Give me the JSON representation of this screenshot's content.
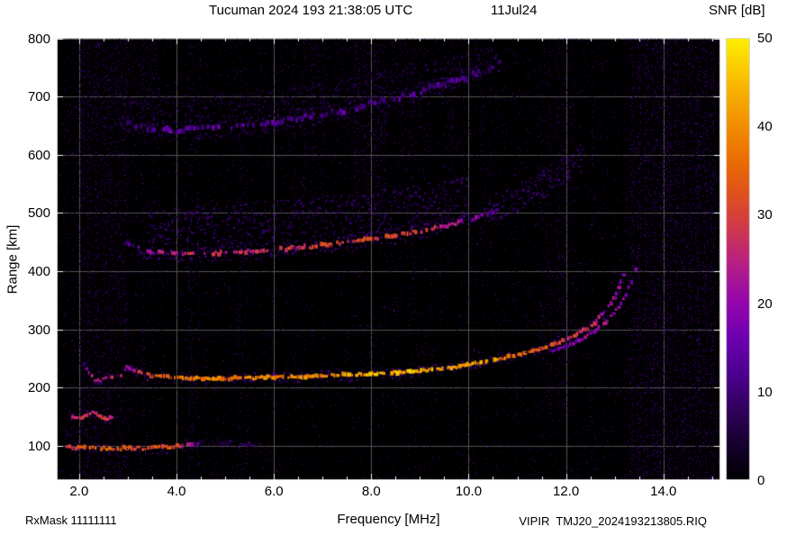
{
  "header": {
    "title": "Tucuman 2024 193 21:38:05 UTC",
    "date": "11Jul24",
    "colorbar_title": "SNR [dB]"
  },
  "axes": {
    "xlabel": "Frequency [MHz]",
    "ylabel": "Range [km]"
  },
  "footer": {
    "rxmask": "RxMask 11111111",
    "filename": "VIPIR  TMJ20_2024193213805.RIQ"
  },
  "chart_data": {
    "type": "heatmap",
    "title": "Tucuman 2024 193 21:38:05 UTC",
    "date_label": "11Jul24",
    "xlabel": "Frequency [MHz]",
    "ylabel": "Range [km]",
    "xlim": [
      1.54,
      15.17
    ],
    "ylim": [
      41,
      801
    ],
    "xticks": [
      2,
      4,
      6,
      8,
      10,
      12,
      14
    ],
    "xtick_labels": [
      "2.0",
      "4.0",
      "6.0",
      "8.0",
      "10.0",
      "12.0",
      "14.0"
    ],
    "x_minor_step": 0.5,
    "yticks": [
      100,
      200,
      300,
      400,
      500,
      600,
      700,
      800
    ],
    "ytick_labels": [
      "100",
      "200",
      "300",
      "400",
      "500",
      "600",
      "700",
      "800"
    ],
    "grid": true,
    "grid_color": "#555555",
    "background": "#000000",
    "border_color": "#d9d9d9",
    "colorbar": {
      "label": "SNR [dB]",
      "min": 0,
      "max": 50,
      "ticks": [
        0,
        10,
        20,
        30,
        40,
        50
      ],
      "tick_labels": [
        "0",
        "10",
        "20",
        "30",
        "40",
        "50"
      ]
    },
    "colormap": [
      [
        0,
        "#000000"
      ],
      [
        0.08,
        "#16002e"
      ],
      [
        0.16,
        "#31005c"
      ],
      [
        0.24,
        "#4c0090"
      ],
      [
        0.32,
        "#6d00b0"
      ],
      [
        0.4,
        "#9406ae"
      ],
      [
        0.48,
        "#b31c8c"
      ],
      [
        0.54,
        "#c62f62"
      ],
      [
        0.6,
        "#d6423a"
      ],
      [
        0.66,
        "#e15619"
      ],
      [
        0.72,
        "#ea6c04"
      ],
      [
        0.8,
        "#f28d00"
      ],
      [
        0.88,
        "#f8b100"
      ],
      [
        0.94,
        "#fcd000"
      ],
      [
        1,
        "#ffef00"
      ]
    ],
    "noise": {
      "base_density": 0.028,
      "base_snr": [
        2,
        9
      ],
      "bright_density": 0.004,
      "bright_snr": [
        8,
        18
      ]
    },
    "rfi_stripes": [
      [
        2.05,
        0.04,
        0.1,
        3,
        11,
        41,
        800
      ],
      [
        2.2,
        0.04,
        0.09,
        3,
        11,
        41,
        800
      ],
      [
        2.35,
        0.04,
        0.1,
        3,
        11,
        41,
        800
      ],
      [
        2.5,
        0.04,
        0.08,
        3,
        11,
        41,
        800
      ],
      [
        2.62,
        0.04,
        0.09,
        3,
        11,
        41,
        800
      ],
      [
        2.78,
        0.04,
        0.09,
        3,
        11,
        41,
        800
      ],
      [
        2.92,
        0.04,
        0.08,
        3,
        11,
        41,
        800
      ],
      [
        2.5,
        0.85,
        0.018,
        2,
        9,
        41,
        800
      ],
      [
        3.3,
        0.03,
        0.04,
        3,
        10,
        41,
        800
      ],
      [
        3.5,
        0.03,
        0.04,
        3,
        10,
        41,
        800
      ],
      [
        4.28,
        0.04,
        0.07,
        3,
        11,
        41,
        800
      ],
      [
        4.42,
        0.03,
        0.05,
        3,
        10,
        41,
        800
      ],
      [
        5.28,
        0.04,
        0.06,
        3,
        11,
        41,
        800
      ],
      [
        5.42,
        0.03,
        0.04,
        3,
        10,
        41,
        800
      ],
      [
        5.9,
        0.03,
        0.035,
        3,
        9,
        41,
        800
      ],
      [
        6.4,
        0.04,
        0.05,
        3,
        10,
        470,
        800
      ],
      [
        6.6,
        0.04,
        0.06,
        3,
        10,
        470,
        800
      ],
      [
        6.8,
        0.04,
        0.05,
        3,
        10,
        470,
        800
      ],
      [
        7.0,
        0.03,
        0.04,
        3,
        10,
        470,
        800
      ],
      [
        7.7,
        0.05,
        0.08,
        4,
        12,
        500,
        800
      ],
      [
        7.9,
        0.04,
        0.07,
        4,
        12,
        500,
        800
      ],
      [
        8.1,
        0.05,
        0.08,
        4,
        12,
        500,
        800
      ],
      [
        8.25,
        0.04,
        0.06,
        4,
        11,
        500,
        800
      ],
      [
        8.6,
        0.03,
        0.04,
        3,
        10,
        520,
        800
      ],
      [
        8.85,
        0.03,
        0.045,
        3,
        10,
        300,
        800
      ],
      [
        9.5,
        0.04,
        0.055,
        3,
        10,
        460,
        800
      ],
      [
        9.65,
        0.03,
        0.05,
        3,
        10,
        460,
        800
      ],
      [
        10.28,
        0.04,
        0.055,
        3,
        10,
        430,
        800
      ],
      [
        10.42,
        0.03,
        0.045,
        3,
        10,
        430,
        800
      ],
      [
        10.95,
        0.03,
        0.03,
        3,
        9,
        41,
        800
      ],
      [
        11.5,
        0.04,
        0.06,
        3,
        11,
        150,
        800
      ],
      [
        11.65,
        0.04,
        0.06,
        3,
        11,
        150,
        800
      ],
      [
        11.82,
        0.04,
        0.065,
        3,
        11,
        150,
        800
      ],
      [
        11.97,
        0.04,
        0.06,
        3,
        11,
        150,
        800
      ],
      [
        12.12,
        0.03,
        0.05,
        3,
        10,
        150,
        800
      ],
      [
        12.55,
        0.03,
        0.035,
        3,
        9,
        41,
        800
      ],
      [
        13.35,
        0.04,
        0.1,
        3,
        12,
        41,
        800
      ],
      [
        13.5,
        0.04,
        0.11,
        3,
        12,
        41,
        800
      ],
      [
        13.65,
        0.04,
        0.1,
        3,
        12,
        41,
        800
      ],
      [
        13.8,
        0.04,
        0.12,
        3,
        12,
        41,
        800
      ],
      [
        13.95,
        0.04,
        0.11,
        3,
        12,
        41,
        800
      ],
      [
        14.1,
        0.04,
        0.12,
        3,
        12,
        41,
        800
      ],
      [
        14.25,
        0.04,
        0.11,
        3,
        12,
        41,
        800
      ],
      [
        14.4,
        0.04,
        0.12,
        3,
        12,
        41,
        800
      ],
      [
        14.55,
        0.04,
        0.11,
        3,
        12,
        41,
        800
      ],
      [
        14.7,
        0.04,
        0.12,
        3,
        12,
        41,
        800
      ],
      [
        14.85,
        0.04,
        0.11,
        3,
        12,
        41,
        800
      ],
      [
        15.0,
        0.04,
        0.1,
        3,
        12,
        41,
        800
      ],
      [
        14.2,
        1.0,
        0.035,
        2,
        9,
        41,
        800
      ],
      [
        2.7,
        0.9,
        0.05,
        3,
        10,
        640,
        800
      ],
      [
        7.9,
        1.3,
        0.03,
        3,
        10,
        560,
        800
      ]
    ],
    "traces": [
      {
        "name": "hop3-cloud",
        "kind": "cloud",
        "up": 40,
        "down": 12,
        "density": 3,
        "snr": [
          3,
          9
        ],
        "points": [
          [
            3.0,
            660,
            0
          ],
          [
            6.0,
            672,
            0
          ],
          [
            9.0,
            716,
            0
          ],
          [
            10.5,
            752,
            0
          ]
        ]
      },
      {
        "name": "third-hop-trace",
        "kind": "dash",
        "thickness": 5,
        "jitter": 2.5,
        "dash": 0.6,
        "halo": [
          10,
          5,
          4,
          10
        ],
        "points": [
          [
            2.85,
            655,
            9
          ],
          [
            3.2,
            647,
            11
          ],
          [
            3.6,
            643,
            12
          ],
          [
            4.0,
            642,
            13
          ],
          [
            4.5,
            644,
            12
          ],
          [
            5.0,
            647,
            13
          ],
          [
            5.5,
            651,
            12
          ],
          [
            6.0,
            656,
            13
          ],
          [
            6.5,
            663,
            12
          ],
          [
            7.0,
            670,
            13
          ],
          [
            7.5,
            678,
            12
          ],
          [
            8.0,
            688,
            13
          ],
          [
            8.5,
            698,
            12
          ],
          [
            9.0,
            710,
            12
          ],
          [
            9.5,
            722,
            11
          ],
          [
            10.0,
            736,
            10
          ],
          [
            10.4,
            750,
            9
          ],
          [
            10.65,
            762,
            8
          ]
        ]
      },
      {
        "name": "hop2-cloud",
        "kind": "cloud",
        "up": 60,
        "down": 15,
        "density": 5,
        "snr": [
          4,
          12
        ],
        "points": [
          [
            3.4,
            450,
            0
          ],
          [
            5.0,
            455,
            0
          ],
          [
            7.0,
            470,
            0
          ],
          [
            9.0,
            490,
            0
          ],
          [
            10.0,
            505,
            0
          ]
        ]
      },
      {
        "name": "hop2-tail-cloud",
        "kind": "cloud",
        "up": 25,
        "down": 25,
        "density": 5,
        "snr": [
          5,
          12
        ],
        "points": [
          [
            10.4,
            505,
            0
          ],
          [
            11.0,
            528,
            0
          ],
          [
            11.6,
            556,
            0
          ],
          [
            12.1,
            585,
            0
          ],
          [
            12.35,
            600,
            0
          ]
        ]
      },
      {
        "name": "second-hop-trace",
        "kind": "dash",
        "thickness": 4,
        "jitter": 1.5,
        "dash": 0.7,
        "halo": [
          8,
          4,
          5,
          13
        ],
        "points": [
          [
            2.95,
            448,
            13
          ],
          [
            3.2,
            439,
            17
          ],
          [
            3.5,
            433,
            21
          ],
          [
            4.0,
            430,
            25
          ],
          [
            4.5,
            430,
            27
          ],
          [
            5.0,
            432,
            26
          ],
          [
            5.5,
            434,
            28
          ],
          [
            6.0,
            437,
            29
          ],
          [
            6.5,
            441,
            28
          ],
          [
            7.0,
            445,
            30
          ],
          [
            7.5,
            450,
            30
          ],
          [
            8.0,
            456,
            31
          ],
          [
            8.5,
            462,
            30
          ],
          [
            9.0,
            469,
            29
          ],
          [
            9.4,
            476,
            27
          ],
          [
            9.7,
            482,
            24
          ],
          [
            10.0,
            489,
            20
          ],
          [
            10.3,
            497,
            16
          ],
          [
            10.6,
            506,
            12
          ]
        ]
      },
      {
        "name": "low-left-patch",
        "kind": "cloud",
        "up": 10,
        "down": 10,
        "density": 2,
        "snr": [
          4,
          10
        ],
        "points": [
          [
            1.7,
            126,
            0
          ],
          [
            2.15,
            124,
            0
          ]
        ]
      },
      {
        "name": "es-150km-trace",
        "kind": "dash",
        "thickness": 3.5,
        "jitter": 1.5,
        "dash": 0.85,
        "halo": [
          5,
          2,
          4,
          12
        ],
        "points": [
          [
            1.78,
            154,
            24
          ],
          [
            1.95,
            147,
            28
          ],
          [
            2.1,
            151,
            30
          ],
          [
            2.25,
            158,
            27
          ],
          [
            2.4,
            150,
            30
          ],
          [
            2.55,
            146,
            28
          ],
          [
            2.7,
            152,
            22
          ]
        ]
      },
      {
        "name": "e-layer-faint-ext",
        "kind": "dash",
        "thickness": 3,
        "jitter": 2,
        "dash": 0.5,
        "halo": [
          5,
          2,
          3,
          9
        ],
        "points": [
          [
            4.35,
            104,
            10
          ],
          [
            4.8,
            106,
            8
          ],
          [
            5.3,
            104,
            7
          ],
          [
            5.7,
            103,
            6
          ]
        ]
      },
      {
        "name": "e-layer-trace",
        "kind": "dash",
        "thickness": 4,
        "jitter": 1.5,
        "dash": 0.92,
        "halo": [
          6,
          2,
          4,
          12
        ],
        "points": [
          [
            1.72,
            100,
            26
          ],
          [
            1.9,
            97,
            32
          ],
          [
            2.2,
            96,
            34
          ],
          [
            2.6,
            95,
            35
          ],
          [
            3.0,
            96,
            34
          ],
          [
            3.4,
            96,
            33
          ],
          [
            3.8,
            98,
            31
          ],
          [
            4.1,
            101,
            27
          ],
          [
            4.35,
            104,
            18
          ]
        ]
      },
      {
        "name": "f1-cusp-trace",
        "kind": "dash",
        "thickness": 3,
        "jitter": 1.5,
        "dash": 0.8,
        "halo": [
          5,
          2,
          4,
          12
        ],
        "points": [
          [
            2.08,
            242,
            12
          ],
          [
            2.18,
            224,
            20
          ],
          [
            2.3,
            214,
            25
          ],
          [
            2.42,
            211,
            27
          ],
          [
            2.52,
            219,
            23
          ],
          [
            2.58,
            233,
            18
          ],
          [
            2.64,
            219,
            24
          ],
          [
            2.74,
            213,
            27
          ],
          [
            2.84,
            219,
            25
          ],
          [
            2.92,
            232,
            20
          ],
          [
            2.98,
            248,
            13
          ]
        ]
      },
      {
        "name": "f2-xmode-trace",
        "kind": "dash",
        "thickness": 3.5,
        "jitter": 1.2,
        "dash": 0.8,
        "halo": [
          4,
          2,
          4,
          11
        ],
        "points": [
          [
            11.7,
            262,
            16
          ],
          [
            12.0,
            272,
            18
          ],
          [
            12.3,
            284,
            20
          ],
          [
            12.6,
            300,
            21
          ],
          [
            12.85,
            318,
            21
          ],
          [
            13.05,
            338,
            20
          ],
          [
            13.2,
            360,
            19
          ],
          [
            13.32,
            382,
            17
          ],
          [
            13.4,
            402,
            15
          ],
          [
            13.46,
            422,
            12
          ]
        ]
      },
      {
        "name": "f2-main-trace",
        "kind": "dash",
        "thickness": 4,
        "jitter": 1.2,
        "dash": 0.88,
        "halo": [
          6,
          3,
          5,
          14
        ],
        "points": [
          [
            2.95,
            236,
            20
          ],
          [
            3.2,
            226,
            28
          ],
          [
            3.5,
            220,
            33
          ],
          [
            4.0,
            217,
            38
          ],
          [
            4.5,
            216,
            39
          ],
          [
            5.0,
            216,
            38
          ],
          [
            5.5,
            217,
            39
          ],
          [
            6.0,
            218,
            38
          ],
          [
            6.5,
            219,
            40
          ],
          [
            7.0,
            221,
            42
          ],
          [
            7.5,
            222,
            44
          ],
          [
            8.0,
            224,
            45
          ],
          [
            8.5,
            226,
            45
          ],
          [
            9.0,
            229,
            44
          ],
          [
            9.5,
            233,
            44
          ],
          [
            10.0,
            240,
            42
          ],
          [
            10.5,
            248,
            40
          ],
          [
            11.0,
            257,
            36
          ],
          [
            11.5,
            268,
            33
          ],
          [
            11.9,
            280,
            30
          ],
          [
            12.2,
            292,
            28
          ],
          [
            12.5,
            308,
            26
          ],
          [
            12.7,
            324,
            24
          ],
          [
            12.9,
            346,
            22
          ],
          [
            13.05,
            372,
            20
          ],
          [
            13.15,
            392,
            18
          ],
          [
            13.22,
            408,
            15
          ]
        ]
      }
    ]
  }
}
